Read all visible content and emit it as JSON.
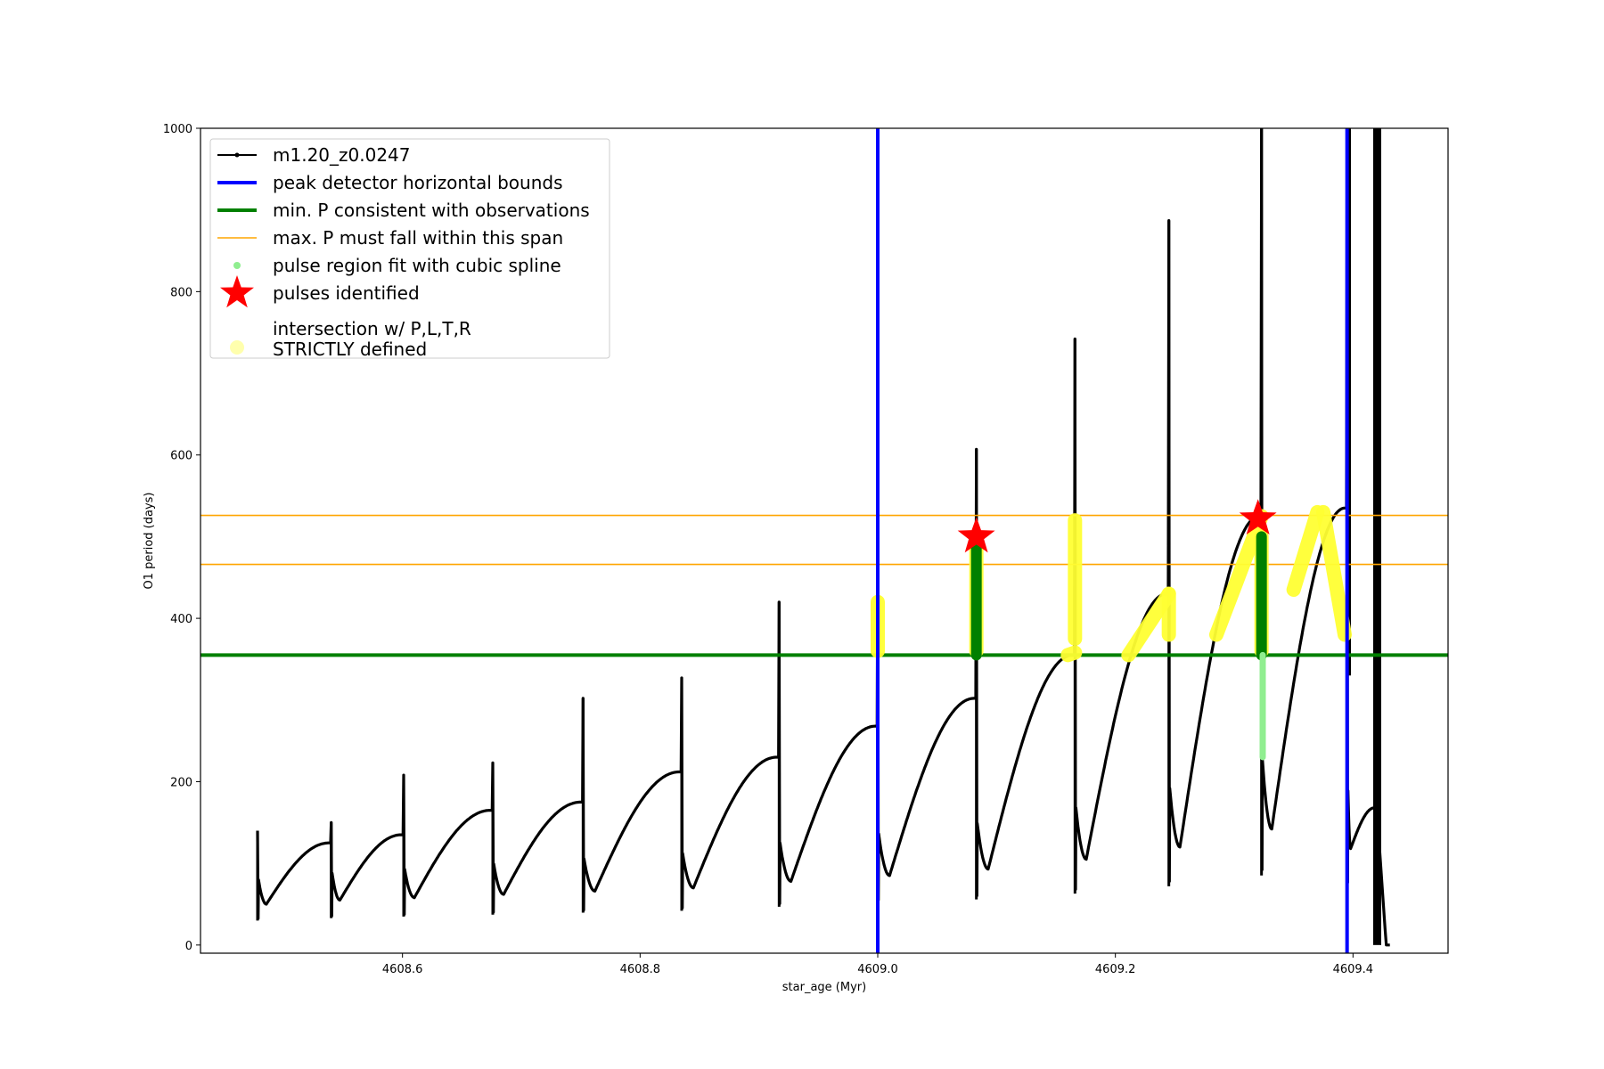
{
  "chart_data": {
    "type": "line",
    "xlabel": "star_age (Myr)",
    "ylabel": "O1 period (days)",
    "xlim": [
      4608.43,
      4609.48
    ],
    "ylim": [
      -10,
      1000
    ],
    "x_ticks": [
      4608.6,
      4608.8,
      4609.0,
      4609.2,
      4609.4
    ],
    "x_tick_labels": [
      "4608.6",
      "4608.8",
      "4609.0",
      "4609.2",
      "4609.4"
    ],
    "y_ticks": [
      0,
      200,
      400,
      600,
      800,
      1000
    ],
    "y_tick_labels": [
      "0",
      "200",
      "400",
      "600",
      "800",
      "1000"
    ],
    "grid": false,
    "legend_position": "top-left",
    "legend": [
      {
        "key": "track",
        "label": "m1.20_z0.0247",
        "style": "line-marker",
        "color": "#000000"
      },
      {
        "key": "bounds",
        "label": "peak detector horizontal bounds",
        "style": "thick-line",
        "color": "#0000ff"
      },
      {
        "key": "minp",
        "label": "min. P consistent with observations",
        "style": "thick-line",
        "color": "#008000"
      },
      {
        "key": "maxp",
        "label": "max. P must fall within this span",
        "style": "thin-line",
        "color": "#ffa500"
      },
      {
        "key": "spline",
        "label": "pulse region fit with cubic spline",
        "style": "dot",
        "color": "#90ee90"
      },
      {
        "key": "pulses",
        "label": "pulses identified",
        "style": "star",
        "color": "#ff0000"
      },
      {
        "key": "intersect",
        "label": "intersection w/ P,L,T,R\nSTRICTLY defined",
        "style": "big-dot",
        "color": "#ffff99"
      }
    ],
    "vertical_lines": [
      {
        "x": 4609.0,
        "color": "#0000ff"
      },
      {
        "x": 4609.395,
        "color": "#0000ff"
      }
    ],
    "horizontal_lines": [
      {
        "y": 355,
        "color": "#008000",
        "kind": "min"
      },
      {
        "y": 466,
        "color": "#ffa500",
        "kind": "max"
      },
      {
        "y": 526,
        "color": "#ffa500",
        "kind": "max"
      }
    ],
    "series": [
      {
        "name": "m1.20_z0.0247",
        "color": "#000000",
        "cycles": [
          {
            "x0": 4608.478,
            "x1": 4608.54,
            "ymin": 50,
            "ypeak": 125,
            "spike": 140
          },
          {
            "x0": 4608.54,
            "x1": 4608.601,
            "ymin": 55,
            "ypeak": 135,
            "spike": 150
          },
          {
            "x0": 4608.601,
            "x1": 4608.676,
            "ymin": 58,
            "ypeak": 165,
            "spike": 208
          },
          {
            "x0": 4608.676,
            "x1": 4608.752,
            "ymin": 62,
            "ypeak": 175,
            "spike": 223
          },
          {
            "x0": 4608.752,
            "x1": 4608.835,
            "ymin": 66,
            "ypeak": 212,
            "spike": 302
          },
          {
            "x0": 4608.835,
            "x1": 4608.917,
            "ymin": 70,
            "ypeak": 230,
            "spike": 327
          },
          {
            "x0": 4608.917,
            "x1": 4609.0,
            "ymin": 78,
            "ypeak": 268,
            "spike": 420
          },
          {
            "x0": 4609.0,
            "x1": 4609.083,
            "ymin": 85,
            "ypeak": 302,
            "spike": 500
          },
          {
            "x0": 4609.083,
            "x1": 4609.166,
            "ymin": 93,
            "ypeak": 355,
            "spike": 607
          },
          {
            "x0": 4609.166,
            "x1": 4609.245,
            "ymin": 105,
            "ypeak": 430,
            "spike": 742
          },
          {
            "x0": 4609.245,
            "x1": 4609.323,
            "ymin": 120,
            "ypeak": 525,
            "spike": 887
          },
          {
            "x0": 4609.323,
            "x1": 4609.395,
            "ymin": 142,
            "ypeak": 535,
            "spike": 1000
          },
          {
            "x0": 4609.395,
            "x1": 4609.42,
            "ymin": 118,
            "ypeak": 168,
            "spike": 1000
          }
        ],
        "tail": [
          {
            "x": 4609.42,
            "y": 168
          },
          {
            "x": 4609.427,
            "y": 20
          },
          {
            "x": 4609.428,
            "y": 0
          },
          {
            "x": 4609.431,
            "y": 0
          }
        ]
      }
    ],
    "intersection_segments": [
      {
        "x0": 4609.0,
        "x1": 4609.0,
        "y0": 360,
        "y1": 420
      },
      {
        "x0": 4609.083,
        "x1": 4609.083,
        "y0": 360,
        "y1": 500
      },
      {
        "x0": 4609.16,
        "x1": 4609.166,
        "y0": 355,
        "y1": 358
      },
      {
        "x0": 4609.166,
        "x1": 4609.166,
        "y0": 375,
        "y1": 520
      },
      {
        "x0": 4609.211,
        "x1": 4609.245,
        "y0": 355,
        "y1": 430
      },
      {
        "x0": 4609.245,
        "x1": 4609.245,
        "y0": 380,
        "y1": 430
      },
      {
        "x0": 4609.285,
        "x1": 4609.323,
        "y0": 380,
        "y1": 525
      },
      {
        "x0": 4609.323,
        "x1": 4609.323,
        "y0": 360,
        "y1": 500
      },
      {
        "x0": 4609.35,
        "x1": 4609.37,
        "y0": 435,
        "y1": 530
      },
      {
        "x0": 4609.375,
        "x1": 4609.393,
        "y0": 530,
        "y1": 380
      }
    ],
    "spline_regions": [
      {
        "x": 4609.083,
        "y0": 355,
        "y1": 500,
        "color": "#008000"
      },
      {
        "x": 4609.323,
        "y0": 355,
        "y1": 500,
        "color": "#008000"
      },
      {
        "x": 4609.324,
        "y0": 230,
        "y1": 355,
        "color": "#90ee90"
      }
    ],
    "pulses": [
      {
        "x": 4609.083,
        "y": 500
      },
      {
        "x": 4609.32,
        "y": 522
      }
    ]
  }
}
